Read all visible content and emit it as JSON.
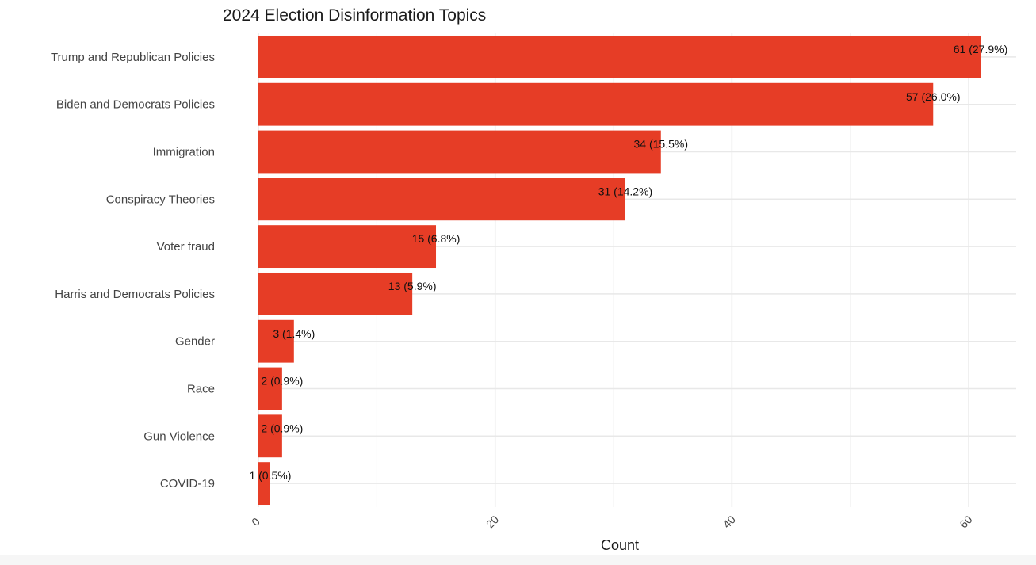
{
  "chart_data": {
    "type": "bar",
    "orientation": "horizontal",
    "title": "2024 Election Disinformation Topics",
    "xlabel": "Count",
    "ylabel": "",
    "categories": [
      "Trump and Republican Policies",
      "Biden and Democrats Policies",
      "Immigration",
      "Conspiracy Theories",
      "Voter fraud",
      "Harris and Democrats Policies",
      "Gender",
      "Race",
      "Gun Violence",
      "COVID-19"
    ],
    "values": [
      61,
      57,
      34,
      31,
      15,
      13,
      3,
      2,
      2,
      1
    ],
    "data_labels": [
      "61 (27.9%)",
      "57 (26.0%)",
      "34 (15.5%)",
      "31 (14.2%)",
      "15 (6.8%)",
      "13 (5.9%)",
      "3 (1.4%)",
      "2 (0.9%)",
      "2 (0.9%)",
      "1 (0.5%)"
    ],
    "x_ticks": [
      0,
      20,
      40,
      60
    ],
    "xlim": [
      0,
      64
    ],
    "grid": true,
    "legend": "none",
    "colors": {
      "bar": "#e63d26",
      "grid_major": "#e8e8e8",
      "grid_minor": "#f2f2f2"
    }
  }
}
